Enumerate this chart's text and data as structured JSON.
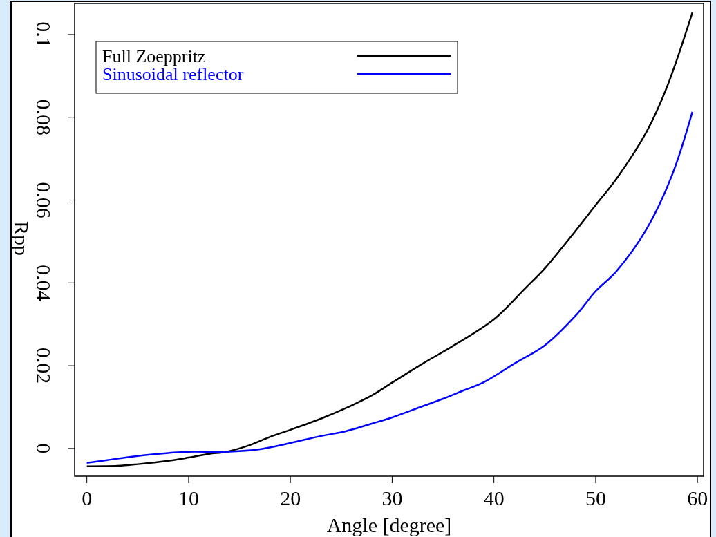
{
  "chart_data": {
    "type": "line",
    "xlabel": "Angle [degree]",
    "ylabel": "Rpp",
    "xlim": [
      -1.2,
      60.6
    ],
    "xticks": [
      0,
      10,
      20,
      30,
      40,
      50,
      60
    ],
    "ylim": [
      -0.0067,
      0.1075
    ],
    "yticks": [
      0,
      0.02,
      0.04,
      0.06,
      0.08,
      0.1
    ],
    "legend": "top left",
    "grid": false,
    "line_style": "solid",
    "marker": "none",
    "series": [
      {
        "name": "Full Zoeppritz",
        "color": "#000000",
        "x": [
          0,
          3,
          5,
          8,
          10,
          12,
          13.7,
          16,
          18,
          20,
          23,
          25.5,
          28,
          30,
          33,
          36,
          40,
          43,
          45,
          48,
          50,
          52,
          55,
          57,
          59.5
        ],
        "values": [
          -0.0043,
          -0.0042,
          -0.0038,
          -0.003,
          -0.0022,
          -0.0013,
          -0.0008,
          0.0008,
          0.0028,
          0.0045,
          0.0072,
          0.0098,
          0.0128,
          0.0159,
          0.0205,
          0.0248,
          0.0312,
          0.0385,
          0.0435,
          0.0525,
          0.0588,
          0.065,
          0.0765,
          0.0873,
          0.1053
        ]
      },
      {
        "name": "Sinusoidal reflector",
        "color": "#0000ff",
        "x": [
          0,
          2,
          5,
          8,
          10,
          13.7,
          17,
          20,
          23,
          25.5,
          28,
          30,
          33,
          35,
          37,
          39,
          42,
          45,
          48,
          50,
          52,
          55,
          57.5,
          59.5
        ],
        "values": [
          -0.0035,
          -0.0028,
          -0.0018,
          -0.0011,
          -0.0008,
          -0.0008,
          -0.0002,
          0.0013,
          0.003,
          0.0042,
          0.006,
          0.0075,
          0.0102,
          0.012,
          0.014,
          0.016,
          0.0205,
          0.0249,
          0.032,
          0.038,
          0.0427,
          0.053,
          0.066,
          0.0813
        ]
      }
    ]
  }
}
